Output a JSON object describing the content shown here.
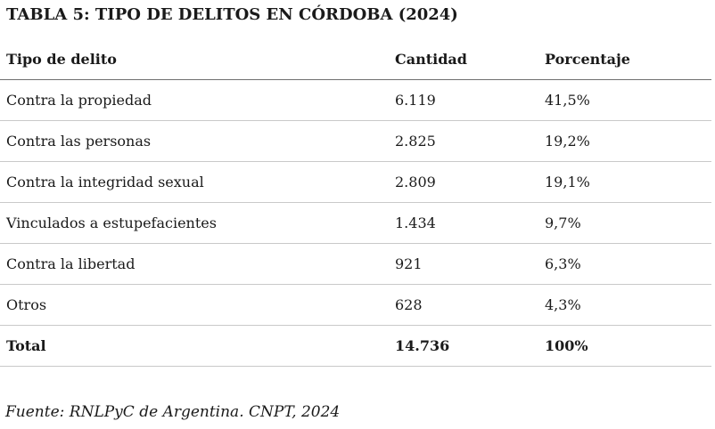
{
  "title": "TABLA 5: TIPO DE DELITOS EN CÓRDOBA (2024)",
  "table": {
    "headers": [
      "Tipo de delito",
      "Cantidad",
      "Porcentaje"
    ],
    "rows": [
      [
        "Contra la propiedad",
        "6.119",
        "41,5%"
      ],
      [
        "Contra las personas",
        "2.825",
        "19,2%"
      ],
      [
        "Contra la integridad sexual",
        "2.809",
        "19,1%"
      ],
      [
        "Vinculados a estupefacientes",
        "1.434",
        "9,7%"
      ],
      [
        "Contra la libertad",
        "921",
        "6,3%"
      ],
      [
        "Otros",
        "628",
        "4,3%"
      ]
    ],
    "total": [
      "Total",
      "14.736",
      "100%"
    ]
  },
  "source": "Fuente: RNLPyC de Argentina. CNPT, 2024"
}
